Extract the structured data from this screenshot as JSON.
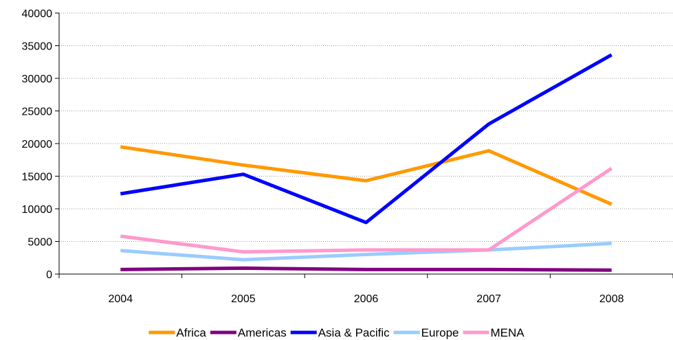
{
  "chart_data": {
    "type": "line",
    "title": "",
    "xlabel": "",
    "ylabel": "",
    "categories": [
      "2004",
      "2005",
      "2006",
      "2007",
      "2008"
    ],
    "ylim": [
      0,
      40000
    ],
    "yticks": [
      "0",
      "5000",
      "10000",
      "15000",
      "20000",
      "25000",
      "30000",
      "35000",
      "40000"
    ],
    "grid": "horizontal dotted",
    "legend_position": "bottom",
    "series": [
      {
        "name": "Africa",
        "color": "#FF9900",
        "values": [
          19500,
          16700,
          14300,
          18900,
          10700
        ]
      },
      {
        "name": "Americas",
        "color": "#800080",
        "values": [
          700,
          900,
          700,
          700,
          600
        ]
      },
      {
        "name": "Asia & Pacific",
        "color": "#0000FF",
        "values": [
          12300,
          15300,
          7900,
          23000,
          33600
        ]
      },
      {
        "name": "Europe",
        "color": "#99CCFF",
        "values": [
          3600,
          2200,
          3000,
          3700,
          4700
        ]
      },
      {
        "name": "MENA",
        "color": "#FF99CC",
        "values": [
          5800,
          3400,
          3700,
          3700,
          16200
        ]
      }
    ]
  }
}
